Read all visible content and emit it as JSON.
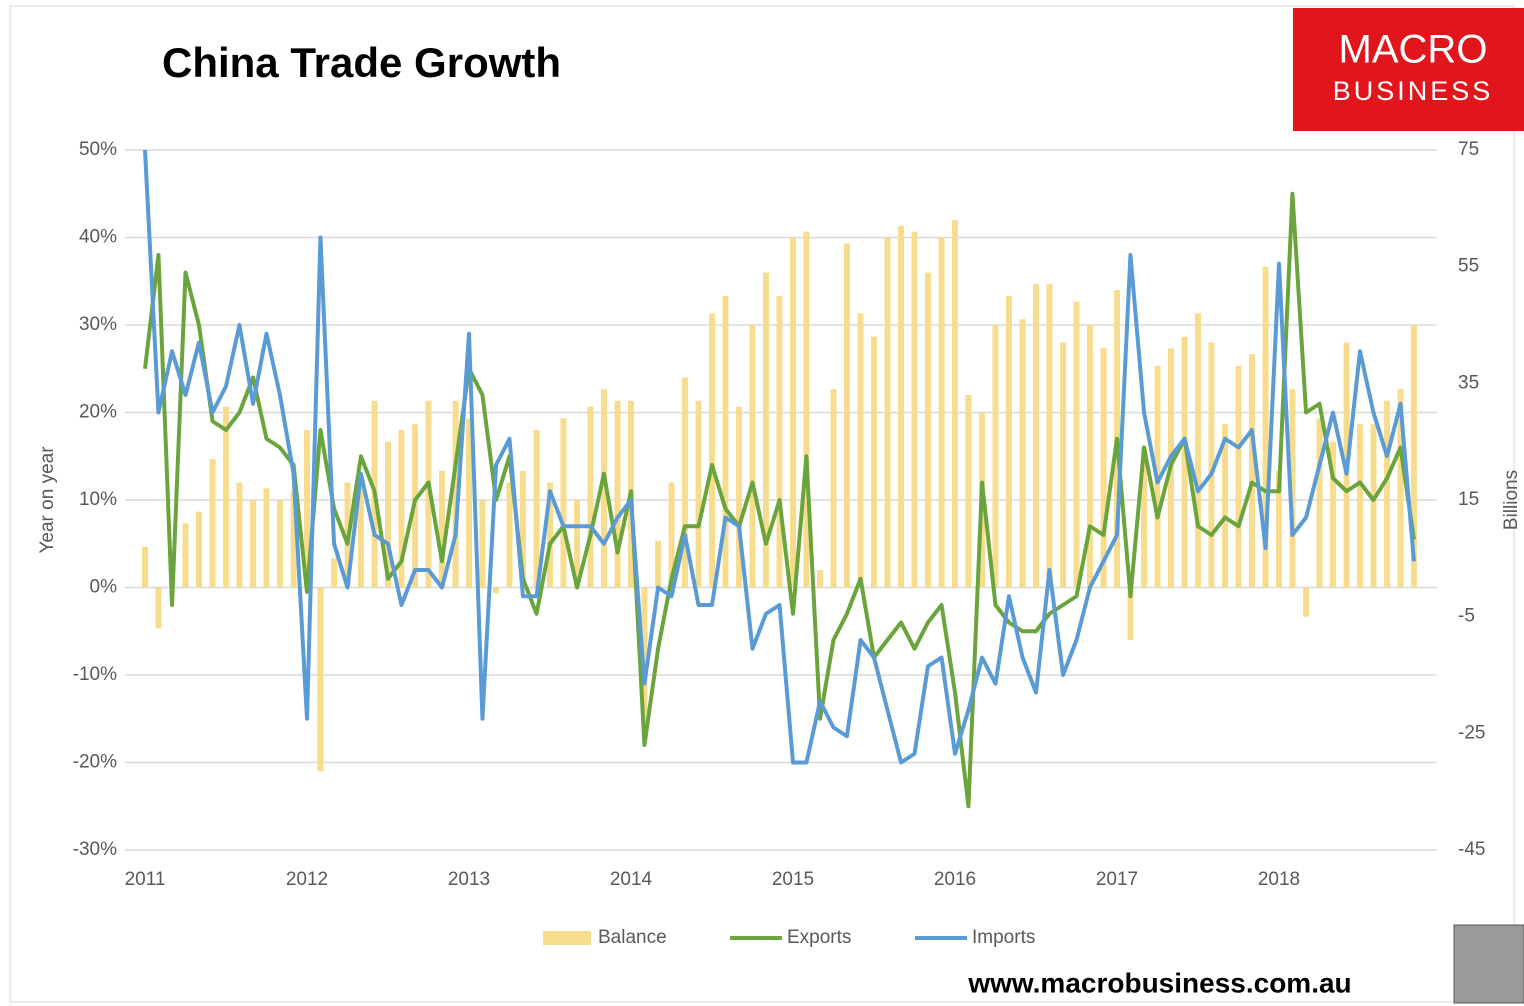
{
  "chart_data": {
    "type": "line",
    "title": "China Trade Growth",
    "y_label": "Year on year",
    "y2_label": "Billions",
    "x": [
      2011,
      2011.083,
      2011.167,
      2011.25,
      2011.333,
      2011.417,
      2011.5,
      2011.583,
      2011.667,
      2011.75,
      2011.833,
      2011.917,
      2012,
      2012.083,
      2012.167,
      2012.25,
      2012.333,
      2012.417,
      2012.5,
      2012.583,
      2012.667,
      2012.75,
      2012.833,
      2012.917,
      2013,
      2013.083,
      2013.167,
      2013.25,
      2013.333,
      2013.417,
      2013.5,
      2013.583,
      2013.667,
      2013.75,
      2013.833,
      2013.917,
      2014,
      2014.083,
      2014.167,
      2014.25,
      2014.333,
      2014.417,
      2014.5,
      2014.583,
      2014.667,
      2014.75,
      2014.833,
      2014.917,
      2015,
      2015.083,
      2015.167,
      2015.25,
      2015.333,
      2015.417,
      2015.5,
      2015.583,
      2015.667,
      2015.75,
      2015.833,
      2015.917,
      2016,
      2016.083,
      2016.167,
      2016.25,
      2016.333,
      2016.417,
      2016.5,
      2016.583,
      2016.667,
      2016.75,
      2016.833,
      2016.917,
      2017,
      2017.083,
      2017.167,
      2017.25,
      2017.333,
      2017.417,
      2017.5,
      2017.583,
      2017.667,
      2017.75,
      2017.833,
      2017.917,
      2018,
      2018.083,
      2018.167,
      2018.25,
      2018.333,
      2018.417,
      2018.5,
      2018.583,
      2018.667,
      2018.75,
      2018.833
    ],
    "series": [
      {
        "name": "Balance",
        "type": "bar",
        "axis": "y2",
        "color": "#f8dc8e",
        "values": [
          7,
          -7,
          0.1,
          11,
          13,
          22,
          31,
          18,
          15,
          17,
          15,
          16.5,
          27,
          -31.5,
          5,
          18,
          19,
          32,
          25,
          27,
          28,
          32,
          20,
          32,
          29,
          15,
          -1,
          18,
          20,
          27,
          18,
          29,
          15,
          31,
          34,
          32,
          32,
          -23,
          8,
          18,
          36,
          32,
          47,
          50,
          31,
          45,
          54,
          50,
          60,
          61,
          3,
          34,
          59,
          47,
          43,
          60,
          62,
          61,
          54,
          60,
          63,
          33,
          30,
          45,
          50,
          46,
          52,
          52,
          42,
          49,
          45,
          41,
          51,
          -9,
          24,
          38,
          41,
          43,
          47,
          42,
          28,
          38,
          40,
          55,
          20,
          34,
          -5,
          29,
          25,
          42,
          28,
          28,
          32,
          34,
          45
        ]
      },
      {
        "name": "Exports",
        "type": "line",
        "color": "#6aa43c",
        "values": [
          25,
          38,
          -2,
          36,
          30,
          19,
          18,
          20,
          24,
          17,
          16,
          14,
          -0.5,
          18,
          9,
          5,
          15,
          11,
          1,
          3,
          10,
          12,
          3,
          14,
          25,
          22,
          10,
          15,
          1,
          -3,
          5,
          7,
          0,
          6,
          13,
          4,
          11,
          -18,
          -7,
          1,
          7,
          7,
          14,
          9,
          7,
          12,
          5,
          10,
          -3,
          15,
          -15,
          -6,
          -3,
          1,
          -8,
          -6,
          -4,
          -7,
          -4,
          -2,
          -12,
          -25,
          12,
          -2,
          -4,
          -5,
          -5,
          -3,
          -2,
          -1,
          7,
          6,
          17,
          -1,
          16,
          8,
          14,
          17,
          7,
          6,
          8,
          7,
          12,
          11,
          11,
          45,
          20,
          21,
          12.5,
          11,
          12,
          10,
          12.5,
          16,
          5.5
        ]
      },
      {
        "name": "Imports",
        "type": "line",
        "color": "#5b9bd5",
        "values": [
          50,
          20,
          27,
          22,
          28,
          20,
          23,
          30,
          21,
          29,
          22,
          13,
          -15,
          40,
          5,
          0,
          13,
          6,
          5,
          -2,
          2,
          2,
          0,
          6,
          29,
          -15,
          14,
          17,
          -1,
          -1,
          11,
          7,
          7,
          7,
          5,
          8,
          10,
          -11,
          0,
          -1,
          6,
          -2,
          -2,
          8,
          7,
          -7,
          -3,
          -2,
          -20,
          -20,
          -13,
          -16,
          -17,
          -6,
          -8,
          -14,
          -20,
          -19,
          -9,
          -8,
          -19,
          -14,
          -8,
          -11,
          -1,
          -8,
          -12,
          2,
          -10,
          -6,
          0,
          3,
          6,
          38,
          20,
          12,
          15,
          17,
          11,
          13,
          17,
          16,
          18,
          4.5,
          37,
          6,
          8,
          14,
          20,
          13,
          27,
          20,
          15,
          21,
          3
        ]
      }
    ],
    "xlim": [
      2011,
      2019
    ],
    "xticks": [
      2011,
      2012,
      2013,
      2014,
      2015,
      2016,
      2017,
      2018
    ],
    "ylim": [
      -30,
      50
    ],
    "yticks": [
      {
        "value": -30,
        "label": "-30%"
      },
      {
        "value": -20,
        "label": "-20%"
      },
      {
        "value": -10,
        "label": "-10%"
      },
      {
        "value": 0,
        "label": "0%"
      },
      {
        "value": 10,
        "label": "10%"
      },
      {
        "value": 20,
        "label": "20%"
      },
      {
        "value": 30,
        "label": "30%"
      },
      {
        "value": 40,
        "label": "40%"
      },
      {
        "value": 50,
        "label": "50%"
      }
    ],
    "y2lim": [
      -45,
      75
    ],
    "y2ticks": [
      -45,
      -25,
      -5,
      15,
      35,
      55,
      75
    ],
    "grid": true,
    "legend": "bottom"
  },
  "branding": {
    "logo_top": "MACRO",
    "logo_bottom": "BUSINESS",
    "website": "www.macrobusiness.com.au"
  }
}
